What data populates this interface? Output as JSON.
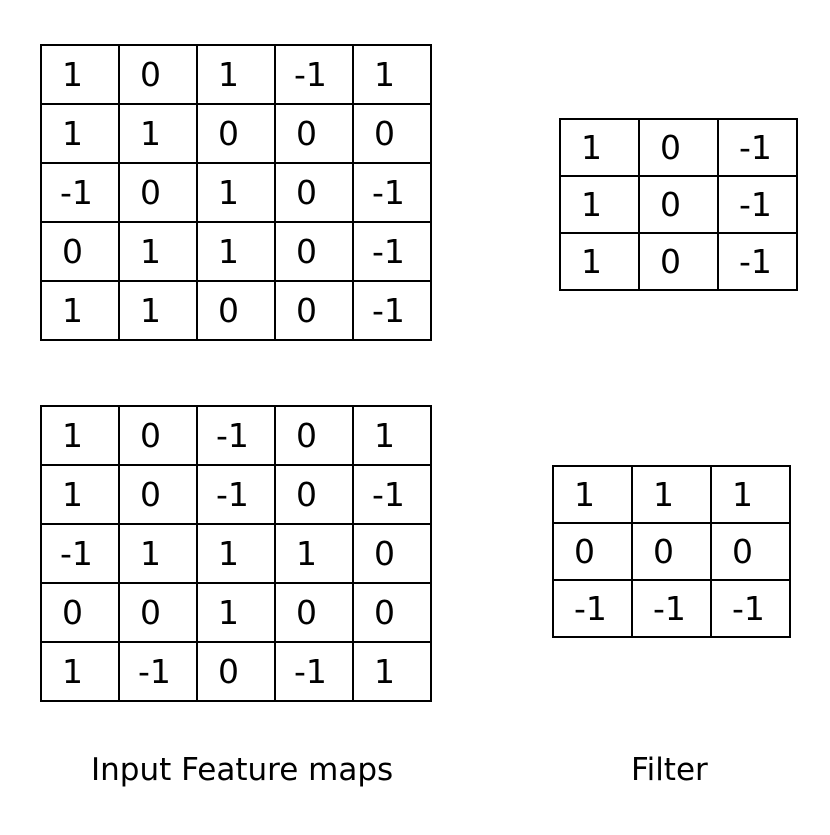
{
  "feature_maps": [
    [
      [
        "1",
        "0",
        "1",
        "-1",
        "1"
      ],
      [
        "1",
        "1",
        "0",
        "0",
        "0"
      ],
      [
        "-1",
        "0",
        "1",
        "0",
        "-1"
      ],
      [
        "0",
        "1",
        "1",
        "0",
        "-1"
      ],
      [
        "1",
        "1",
        "0",
        "0",
        "-1"
      ]
    ],
    [
      [
        "1",
        "0",
        "-1",
        "0",
        "1"
      ],
      [
        "1",
        "0",
        "-1",
        "0",
        "-1"
      ],
      [
        "-1",
        "1",
        "1",
        "1",
        "0"
      ],
      [
        "0",
        "0",
        "1",
        "0",
        "0"
      ],
      [
        "1",
        "-1",
        "0",
        "-1",
        "1"
      ]
    ]
  ],
  "filters": [
    [
      [
        "1",
        "0",
        "-1"
      ],
      [
        "1",
        "0",
        "-1"
      ],
      [
        "1",
        "0",
        "-1"
      ]
    ],
    [
      [
        "1",
        "1",
        "1"
      ],
      [
        "0",
        "0",
        "0"
      ],
      [
        "-1",
        "-1",
        "-1"
      ]
    ]
  ],
  "captions": {
    "input": "Input Feature maps",
    "filter": "Filter"
  }
}
